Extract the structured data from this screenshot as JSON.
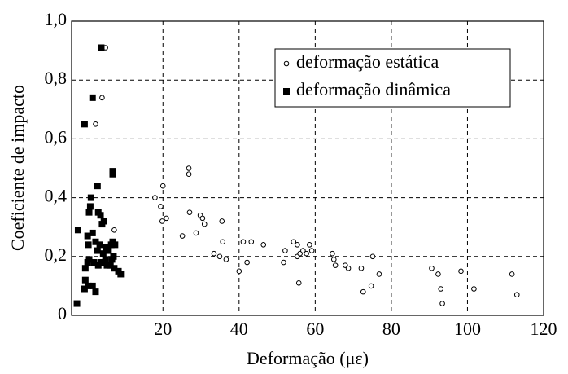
{
  "chart_data": {
    "type": "scatter",
    "xlabel": "Deformação (με)",
    "ylabel": "Coeficiente de impacto",
    "xlim": [
      -4,
      120
    ],
    "ylim": [
      0,
      1
    ],
    "xticks": [
      20,
      40,
      60,
      80,
      100,
      120
    ],
    "yticks": [
      0,
      {
        "value": 0.2,
        "label": "0,2"
      },
      {
        "value": 0.4,
        "label": "0,4"
      },
      {
        "value": 0.6,
        "label": "0,6"
      },
      {
        "value": 0.8,
        "label": "0,8"
      },
      {
        "value": 1.0,
        "label": "1,0"
      }
    ],
    "grid": true,
    "legend": "upper right",
    "series": [
      {
        "name": "deformação estática",
        "color": "#000000",
        "marker": "circle",
        "x": [
          4.9,
          4.0,
          2.3,
          7.2,
          17.9,
          20.0,
          19.4,
          19.8,
          20.9,
          26.8,
          26.8,
          27.0,
          25.1,
          28.7,
          29.8,
          30.4,
          30.9,
          33.4,
          34.9,
          35.5,
          35.7,
          36.6,
          40.0,
          41.1,
          42.1,
          43.2,
          46.4,
          51.7,
          52.1,
          54.3,
          55.3,
          55.3,
          56.0,
          55.7,
          56.8,
          57.7,
          58.5,
          59.1,
          64.5,
          64.9,
          65.3,
          67.9,
          68.7,
          72.1,
          72.6,
          74.7,
          75.1,
          76.8,
          90.6,
          92.3,
          93.0,
          93.4,
          98.3,
          101.7,
          111.7,
          113.0
        ],
        "values": [
          0.91,
          0.74,
          0.65,
          0.29,
          0.4,
          0.44,
          0.37,
          0.32,
          0.33,
          0.5,
          0.48,
          0.35,
          0.27,
          0.28,
          0.34,
          0.33,
          0.31,
          0.21,
          0.2,
          0.32,
          0.25,
          0.19,
          0.15,
          0.25,
          0.18,
          0.25,
          0.24,
          0.18,
          0.22,
          0.25,
          0.24,
          0.2,
          0.21,
          0.11,
          0.22,
          0.21,
          0.24,
          0.22,
          0.21,
          0.19,
          0.17,
          0.17,
          0.16,
          0.16,
          0.08,
          0.1,
          0.2,
          0.14,
          0.16,
          0.14,
          0.09,
          0.04,
          0.15,
          0.09,
          0.14,
          0.07
        ]
      },
      {
        "name": "deformação dinâmica",
        "color": "#000000",
        "marker": "square",
        "x": [
          3.8,
          1.5,
          -0.6,
          2.8,
          1.1,
          0.9,
          0.6,
          -2.3,
          3.0,
          3.6,
          4.5,
          4.0,
          6.8,
          6.8,
          0.2,
          1.5,
          0.4,
          2.3,
          3.4,
          2.8,
          0.6,
          0.2,
          1.9,
          3.0,
          3.8,
          4.9,
          4.3,
          5.1,
          5.7,
          6.4,
          6.8,
          7.4,
          5.3,
          6.2,
          7.2,
          8.3,
          8.9,
          6.6,
          7.0,
          -0.4,
          -0.4,
          0.4,
          -0.6,
          1.5,
          2.3,
          -2.6
        ],
        "values": [
          0.91,
          0.74,
          0.65,
          0.44,
          0.4,
          0.37,
          0.35,
          0.29,
          0.35,
          0.34,
          0.32,
          0.31,
          0.49,
          0.48,
          0.27,
          0.28,
          0.24,
          0.25,
          0.24,
          0.22,
          0.19,
          0.18,
          0.18,
          0.17,
          0.18,
          0.19,
          0.21,
          0.23,
          0.22,
          0.24,
          0.25,
          0.24,
          0.17,
          0.17,
          0.16,
          0.15,
          0.14,
          0.19,
          0.2,
          0.16,
          0.12,
          0.1,
          0.09,
          0.1,
          0.08,
          0.04
        ]
      }
    ]
  }
}
